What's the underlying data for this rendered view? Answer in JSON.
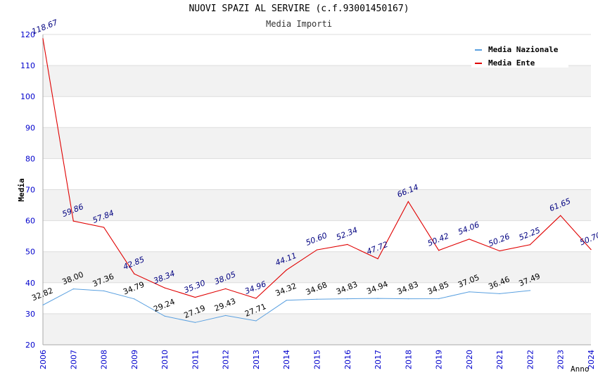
{
  "chart_data": {
    "type": "line",
    "title": "NUOVI SPAZI AL SERVIRE (c.f.93001450167)",
    "subtitle": "Media Importi",
    "xlabel": "Anno",
    "ylabel": "Media",
    "ylim": [
      20,
      120
    ],
    "yticks": [
      20,
      30,
      40,
      50,
      60,
      70,
      80,
      90,
      100,
      110,
      120
    ],
    "x": [
      "2006",
      "2007",
      "2008",
      "2009",
      "2010",
      "2011",
      "2012",
      "2013",
      "2014",
      "2015",
      "2016",
      "2017",
      "2018",
      "2019",
      "2020",
      "2021",
      "2022",
      "2023",
      "2024"
    ],
    "legend_position": "top-right",
    "series": [
      {
        "name": "Media Nazionale",
        "color": "#5aa0e0",
        "label_color": "#000000",
        "values": [
          32.82,
          38.0,
          37.36,
          34.79,
          29.24,
          27.19,
          29.43,
          27.71,
          34.32,
          34.68,
          34.83,
          34.94,
          34.83,
          34.85,
          37.05,
          36.46,
          37.49,
          null,
          null
        ],
        "labels": [
          "32.82",
          "38.00",
          "37.36",
          "34.79",
          "29.24",
          "27.19",
          "29.43",
          "27.71",
          "34.32",
          "34.68",
          "34.83",
          "34.94",
          "34.83",
          "34.85",
          "37.05",
          "36.46",
          "37.49",
          null,
          null
        ]
      },
      {
        "name": "Media Ente",
        "color": "#e00000",
        "label_color": "#000080",
        "values": [
          118.67,
          59.86,
          57.84,
          42.85,
          38.34,
          35.3,
          38.05,
          34.96,
          44.11,
          50.6,
          52.34,
          47.72,
          66.14,
          50.42,
          54.06,
          50.26,
          52.25,
          61.65,
          50.7
        ],
        "labels": [
          "118.67",
          "59.86",
          "57.84",
          "42.85",
          "38.34",
          "35.30",
          "38.05",
          "34.96",
          "44.11",
          "50.60",
          "52.34",
          "47.72",
          "66.14",
          "50.42",
          "54.06",
          "50.26",
          "52.25",
          "61.65",
          "50.70"
        ]
      }
    ]
  }
}
